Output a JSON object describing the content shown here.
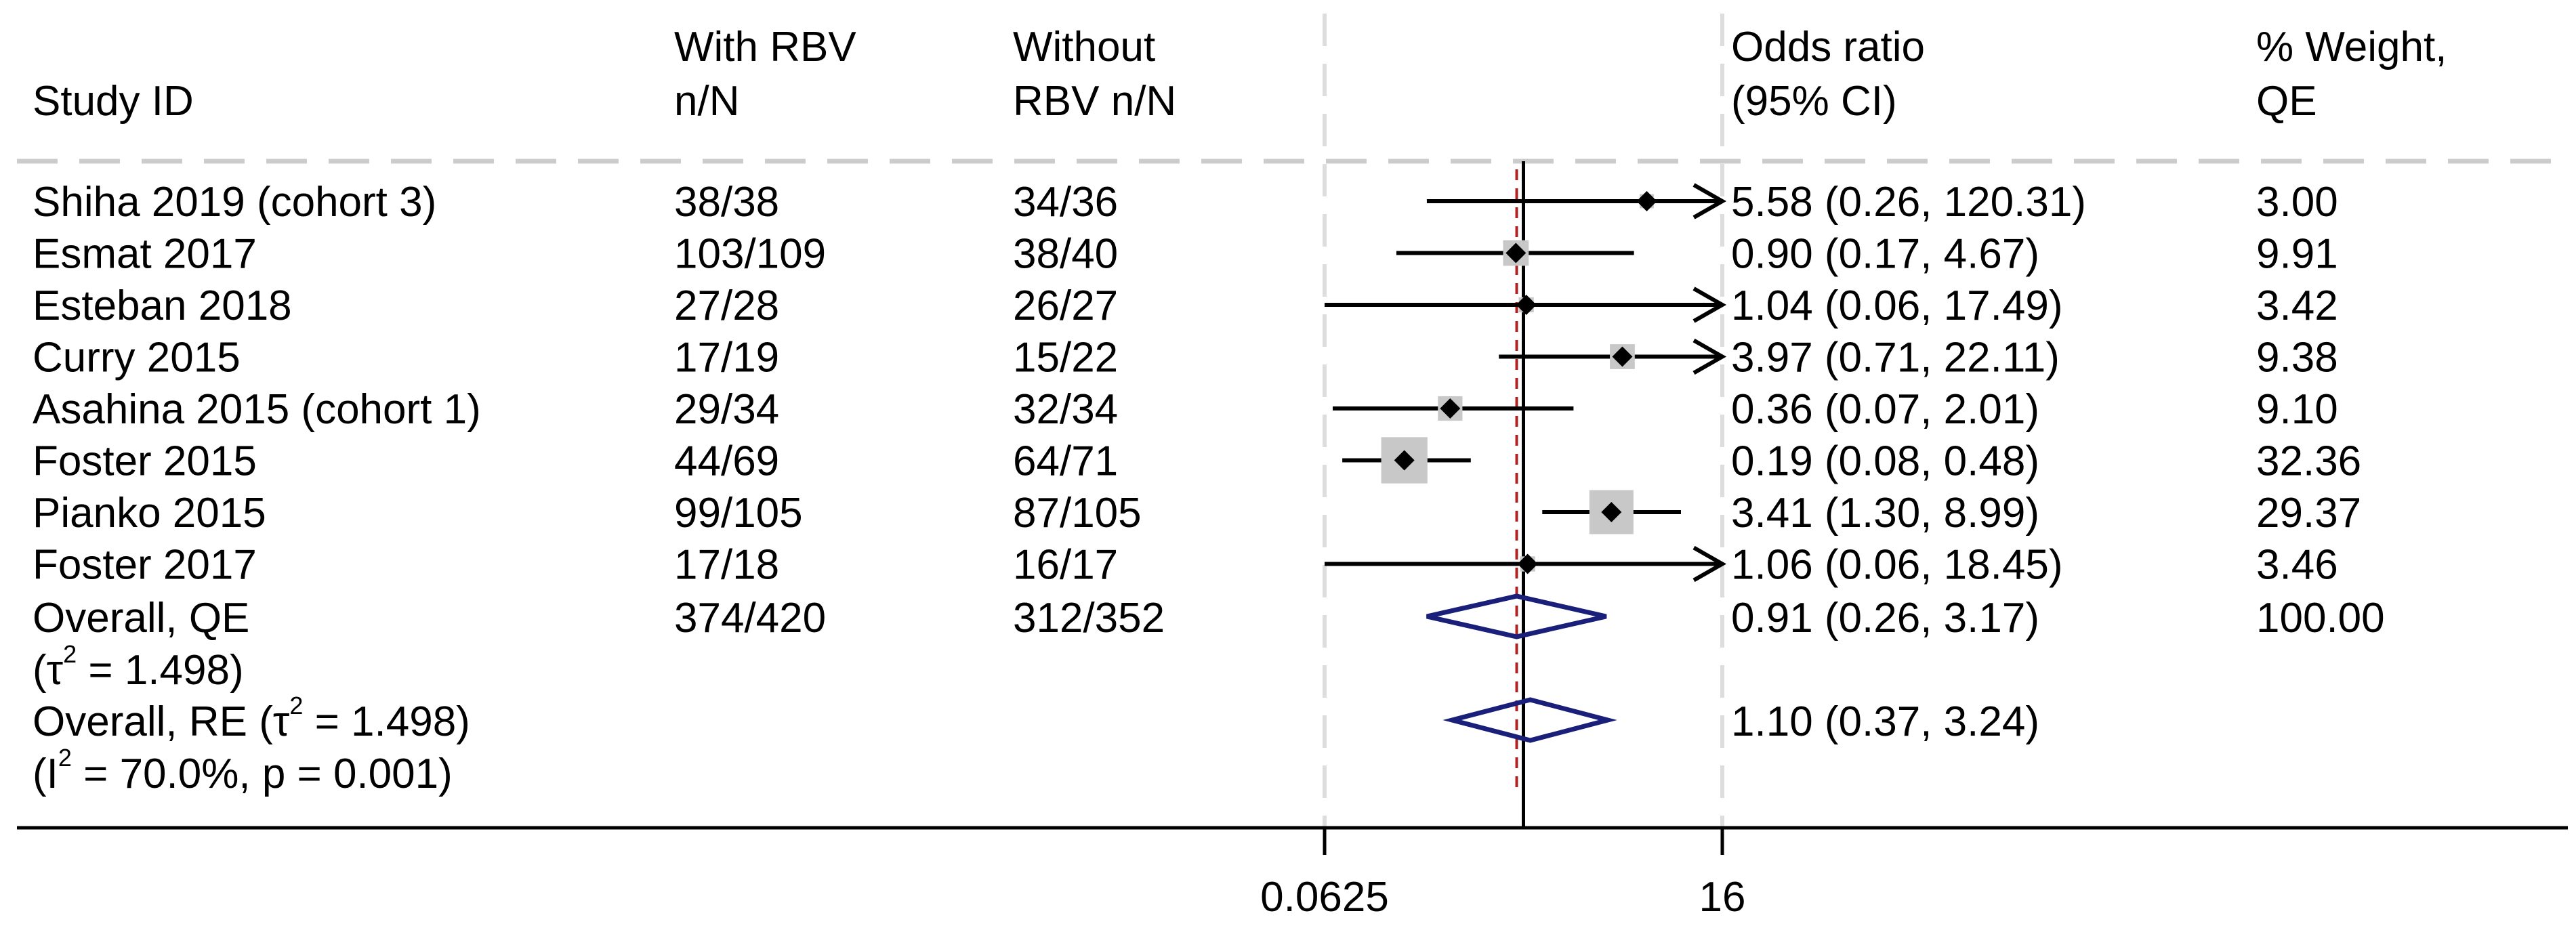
{
  "chart_data": {
    "type": "forest",
    "title": "",
    "scale": "log2",
    "xlim": [
      0.0625,
      16
    ],
    "xticks": [
      {
        "value": 0.0625,
        "label": "0.0625"
      },
      {
        "value": 16,
        "label": "16"
      }
    ],
    "null_line": 1,
    "overall_line": 0.91,
    "columns": {
      "study": "Study ID",
      "with_1": "With RBV",
      "with_2": "n/N",
      "without_1": "Without",
      "without_2": "RBV n/N",
      "or_1": "Odds ratio",
      "or_2": "(95% CI)",
      "weight_1": "% Weight,",
      "weight_2": "QE"
    },
    "studies": [
      {
        "study": "Shiha 2019 (cohort 3)",
        "with": "38/38",
        "without": "34/36",
        "or": 5.58,
        "lo": 0.26,
        "hi": 120.31,
        "or_text": "5.58 (0.26, 120.31)",
        "weight": 3.0,
        "weight_text": "3.00"
      },
      {
        "study": "Esmat 2017",
        "with": "103/109",
        "without": "38/40",
        "or": 0.9,
        "lo": 0.17,
        "hi": 4.67,
        "or_text": "0.90 (0.17, 4.67)",
        "weight": 9.91,
        "weight_text": "9.91"
      },
      {
        "study": "Esteban 2018",
        "with": "27/28",
        "without": "26/27",
        "or": 1.04,
        "lo": 0.06,
        "hi": 17.49,
        "or_text": "1.04 (0.06, 17.49)",
        "weight": 3.42,
        "weight_text": "3.42"
      },
      {
        "study": "Curry 2015",
        "with": "17/19",
        "without": "15/22",
        "or": 3.97,
        "lo": 0.71,
        "hi": 22.11,
        "or_text": "3.97 (0.71, 22.11)",
        "weight": 9.38,
        "weight_text": "9.38"
      },
      {
        "study": "Asahina 2015 (cohort 1)",
        "with": "29/34",
        "without": "32/34",
        "or": 0.36,
        "lo": 0.07,
        "hi": 2.01,
        "or_text": "0.36 (0.07, 2.01)",
        "weight": 9.1,
        "weight_text": "9.10"
      },
      {
        "study": "Foster 2015",
        "with": "44/69",
        "without": "64/71",
        "or": 0.19,
        "lo": 0.08,
        "hi": 0.48,
        "or_text": "0.19 (0.08, 0.48)",
        "weight": 32.36,
        "weight_text": "32.36"
      },
      {
        "study": "Pianko 2015",
        "with": "99/105",
        "without": "87/105",
        "or": 3.41,
        "lo": 1.3,
        "hi": 8.99,
        "or_text": "3.41 (1.30, 8.99)",
        "weight": 29.37,
        "weight_text": "29.37"
      },
      {
        "study": "Foster 2017",
        "with": "17/18",
        "without": "16/17",
        "or": 1.06,
        "lo": 0.06,
        "hi": 18.45,
        "or_text": "1.06 (0.06, 18.45)",
        "weight": 3.46,
        "weight_text": "3.46"
      }
    ],
    "overall_qe": {
      "label": "Overall, QE",
      "sub": "(τ",
      "sub_sup": "2",
      "sub_tail": " = 1.498)",
      "with": "374/420",
      "without": "312/352",
      "or": 0.91,
      "lo": 0.26,
      "hi": 3.17,
      "or_text": "0.91 (0.26, 3.17)",
      "weight_text": "100.00"
    },
    "overall_re": {
      "label": "Overall, RE (τ",
      "label_sup": "2",
      "label_tail": " = 1.498)",
      "sub": "(I",
      "sub_sup": "2",
      "sub_tail": " = 70.0%, p = 0.001)",
      "or": 1.1,
      "lo": 0.37,
      "hi": 3.24,
      "or_text": "1.10 (0.37, 3.24)"
    },
    "colors": {
      "text": "#000000",
      "diamond": "#1a1f7a",
      "overall_line": "#b22222",
      "dashed": "#cccccc",
      "box": "#c8c8c8"
    }
  }
}
